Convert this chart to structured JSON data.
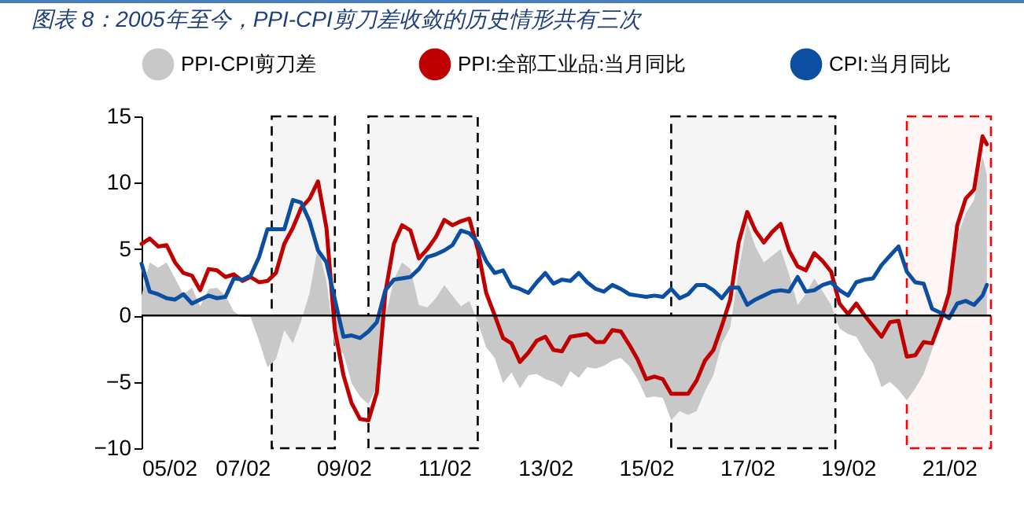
{
  "chart_data": {
    "type": "line",
    "title": "图表 8：2005年至今，PPI-CPI剪刀差收敛的历史情形共有三次",
    "x": [
      "2005-02",
      "2005-04",
      "2005-06",
      "2005-08",
      "2005-10",
      "2005-12",
      "2006-02",
      "2006-04",
      "2006-06",
      "2006-08",
      "2006-10",
      "2006-12",
      "2007-02",
      "2007-04",
      "2007-06",
      "2007-08",
      "2007-10",
      "2007-12",
      "2008-02",
      "2008-04",
      "2008-06",
      "2008-08",
      "2008-10",
      "2008-12",
      "2009-02",
      "2009-04",
      "2009-06",
      "2009-08",
      "2009-10",
      "2009-12",
      "2010-02",
      "2010-04",
      "2010-06",
      "2010-08",
      "2010-10",
      "2010-12",
      "2011-02",
      "2011-04",
      "2011-06",
      "2011-08",
      "2011-10",
      "2011-12",
      "2012-02",
      "2012-04",
      "2012-06",
      "2012-08",
      "2012-10",
      "2012-12",
      "2013-02",
      "2013-04",
      "2013-06",
      "2013-08",
      "2013-10",
      "2013-12",
      "2014-02",
      "2014-04",
      "2014-06",
      "2014-08",
      "2014-10",
      "2014-12",
      "2015-02",
      "2015-04",
      "2015-06",
      "2015-08",
      "2015-10",
      "2015-12",
      "2016-02",
      "2016-04",
      "2016-06",
      "2016-08",
      "2016-10",
      "2016-12",
      "2017-02",
      "2017-04",
      "2017-06",
      "2017-08",
      "2017-10",
      "2017-12",
      "2018-02",
      "2018-04",
      "2018-06",
      "2018-08",
      "2018-10",
      "2018-12",
      "2019-02",
      "2019-04",
      "2019-06",
      "2019-08",
      "2019-10",
      "2019-12",
      "2020-02",
      "2020-04",
      "2020-06",
      "2020-08",
      "2020-10",
      "2020-12",
      "2021-02",
      "2021-04",
      "2021-06",
      "2021-08",
      "2021-10",
      "2021-11"
    ],
    "series": [
      {
        "name": "PPI-CPI剪刀差",
        "type": "area",
        "color": "#c8c8c8",
        "values": [
          1.5,
          4.0,
          3.6,
          4.0,
          2.8,
          1.6,
          2.1,
          0.7,
          2.0,
          2.1,
          1.5,
          0.3,
          -0.1,
          -0.1,
          -1.9,
          -3.9,
          -3.3,
          -1.1,
          -2.1,
          -0.4,
          1.7,
          5.2,
          2.6,
          -2.3,
          -2.9,
          -5.1,
          -6.1,
          -6.7,
          -5.3,
          -0.2,
          2.7,
          4.0,
          3.5,
          0.8,
          0.6,
          1.3,
          2.3,
          1.5,
          0.7,
          1.1,
          -0.5,
          -2.4,
          -3.2,
          -5.1,
          -4.3,
          -5.5,
          -4.5,
          -4.4,
          -4.8,
          -5.0,
          -5.4,
          -4.2,
          -4.7,
          -3.9,
          -4.0,
          -3.8,
          -3.4,
          -3.2,
          -3.8,
          -4.8,
          -6.2,
          -6.1,
          -6.2,
          -7.9,
          -7.2,
          -7.5,
          -7.2,
          -5.7,
          -4.5,
          -2.1,
          -0.9,
          3.4,
          7.0,
          5.2,
          4.0,
          4.5,
          5.0,
          3.1,
          0.8,
          1.6,
          2.8,
          1.8,
          0.8,
          -1.0,
          -1.4,
          -1.6,
          -2.7,
          -3.6,
          -5.4,
          -5.0,
          -5.6,
          -6.4,
          -5.5,
          -4.4,
          -2.6,
          -0.6,
          1.9,
          5.9,
          7.7,
          8.7,
          12.0,
          10.6
        ]
      },
      {
        "name": "PPI:全部工业品:当月同比",
        "color": "#c00000",
        "values": [
          5.4,
          5.8,
          5.2,
          5.3,
          4.0,
          3.2,
          3.0,
          1.9,
          3.5,
          3.4,
          2.9,
          3.1,
          2.6,
          2.9,
          2.5,
          2.6,
          3.2,
          5.4,
          6.6,
          8.1,
          8.8,
          10.1,
          6.6,
          -1.1,
          -4.5,
          -6.6,
          -7.8,
          -7.9,
          -5.8,
          1.7,
          5.4,
          6.8,
          6.4,
          4.3,
          5.0,
          5.9,
          7.2,
          6.8,
          7.1,
          7.3,
          5.0,
          1.7,
          0.0,
          -1.7,
          -2.1,
          -3.5,
          -2.8,
          -1.9,
          -1.6,
          -2.6,
          -2.7,
          -1.6,
          -1.5,
          -1.4,
          -2.0,
          -2.0,
          -1.1,
          -1.2,
          -2.2,
          -3.3,
          -4.8,
          -4.6,
          -4.8,
          -5.9,
          -5.9,
          -5.9,
          -4.9,
          -3.4,
          -2.6,
          -0.8,
          1.2,
          5.5,
          7.8,
          6.4,
          5.5,
          6.3,
          6.9,
          4.9,
          3.7,
          3.4,
          4.7,
          4.1,
          3.3,
          0.9,
          0.1,
          0.9,
          0.0,
          -0.8,
          -1.6,
          -0.5,
          -0.4,
          -3.1,
          -3.0,
          -2.0,
          -2.1,
          -0.4,
          1.7,
          6.8,
          8.8,
          9.5,
          13.5,
          12.9
        ]
      },
      {
        "name": "CPI:当月同比",
        "color": "#0b4ea2",
        "values": [
          3.9,
          1.8,
          1.6,
          1.3,
          1.2,
          1.6,
          0.9,
          1.2,
          1.5,
          1.3,
          1.4,
          2.8,
          2.7,
          3.0,
          4.4,
          6.5,
          6.5,
          6.5,
          8.7,
          8.5,
          7.1,
          4.9,
          4.0,
          1.2,
          -1.6,
          -1.5,
          -1.7,
          -1.2,
          -0.5,
          1.9,
          2.7,
          2.8,
          2.9,
          3.5,
          4.4,
          4.6,
          4.9,
          5.3,
          6.4,
          6.2,
          5.5,
          4.1,
          3.2,
          3.4,
          2.2,
          2.0,
          1.7,
          2.5,
          3.2,
          2.4,
          2.7,
          2.6,
          3.2,
          2.5,
          2.0,
          1.8,
          2.3,
          2.0,
          1.6,
          1.5,
          1.4,
          1.5,
          1.4,
          2.0,
          1.3,
          1.6,
          2.3,
          2.3,
          1.9,
          1.3,
          2.1,
          2.1,
          0.8,
          1.2,
          1.5,
          1.8,
          1.9,
          1.8,
          2.9,
          1.8,
          1.9,
          2.3,
          2.5,
          1.9,
          1.5,
          2.5,
          2.7,
          2.8,
          3.8,
          4.5,
          5.2,
          3.3,
          2.5,
          2.4,
          0.5,
          0.2,
          -0.2,
          0.9,
          1.1,
          0.8,
          1.5,
          2.3
        ]
      }
    ],
    "xlim": [
      "2005-02",
      "2021-12"
    ],
    "xticks": [
      {
        "value": "2005-02",
        "label": "05/02"
      },
      {
        "value": "2007-02",
        "label": "07/02"
      },
      {
        "value": "2009-02",
        "label": "09/02"
      },
      {
        "value": "2011-02",
        "label": "11/02"
      },
      {
        "value": "2013-02",
        "label": "13/02"
      },
      {
        "value": "2015-02",
        "label": "15/02"
      },
      {
        "value": "2017-02",
        "label": "17/02"
      },
      {
        "value": "2019-02",
        "label": "19/02"
      },
      {
        "value": "2021-02",
        "label": "21/02"
      }
    ],
    "ylim": [
      -10,
      15
    ],
    "yticks": [
      -10,
      -5,
      0,
      5,
      10,
      15
    ],
    "ref_lines": [
      {
        "axis": "y",
        "value": 0,
        "color": "#000000"
      }
    ],
    "bands": [
      {
        "axis": "x",
        "from": "2007-09",
        "to": "2008-12",
        "color": "#000000"
      },
      {
        "axis": "x",
        "from": "2009-08",
        "to": "2011-10",
        "color": "#000000"
      },
      {
        "axis": "x",
        "from": "2015-08",
        "to": "2018-11",
        "color": "#000000"
      },
      {
        "axis": "x",
        "from": "2020-04",
        "to": "2021-12",
        "color": "#ff0000"
      }
    ],
    "grid": false,
    "legend": "top"
  }
}
